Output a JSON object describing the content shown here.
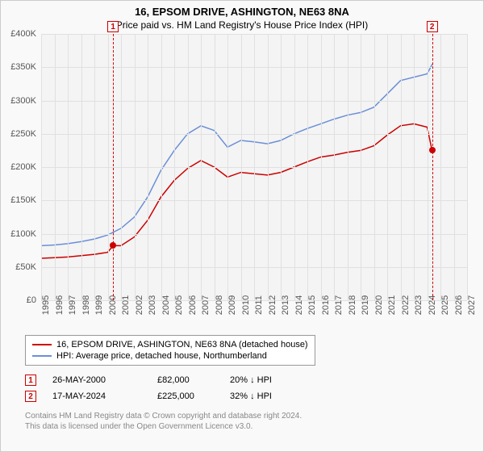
{
  "title": "16, EPSOM DRIVE, ASHINGTON, NE63 8NA",
  "subtitle": "Price paid vs. HM Land Registry's House Price Index (HPI)",
  "chart": {
    "type": "line",
    "background_color": "#f4f4f4",
    "grid_color": "#e0e0e0",
    "axis_label_color": "#555555",
    "axis_fontsize": 11,
    "y": {
      "min": 0,
      "max": 400000,
      "tick_step": 50000,
      "ticks": [
        "£0",
        "£50K",
        "£100K",
        "£150K",
        "£200K",
        "£250K",
        "£300K",
        "£350K",
        "£400K"
      ]
    },
    "x": {
      "min": 1995,
      "max": 2027,
      "tick_step": 1,
      "ticks": [
        "1995",
        "1996",
        "1997",
        "1998",
        "1999",
        "2000",
        "2001",
        "2002",
        "2003",
        "2004",
        "2005",
        "2006",
        "2007",
        "2008",
        "2009",
        "2010",
        "2011",
        "2012",
        "2013",
        "2014",
        "2015",
        "2016",
        "2017",
        "2018",
        "2019",
        "2020",
        "2021",
        "2022",
        "2023",
        "2024",
        "2025",
        "2026",
        "2027"
      ]
    },
    "series": [
      {
        "id": "property",
        "label": "16, EPSOM DRIVE, ASHINGTON, NE63 8NA (detached house)",
        "color": "#cc0000",
        "line_width": 1.5,
        "data": [
          [
            1995,
            63000
          ],
          [
            1996,
            64000
          ],
          [
            1997,
            65000
          ],
          [
            1998,
            67000
          ],
          [
            1999,
            69000
          ],
          [
            2000,
            72000
          ],
          [
            2000.4,
            82000
          ],
          [
            2001,
            82000
          ],
          [
            2002,
            95000
          ],
          [
            2003,
            120000
          ],
          [
            2004,
            155000
          ],
          [
            2005,
            180000
          ],
          [
            2006,
            198000
          ],
          [
            2007,
            210000
          ],
          [
            2008,
            200000
          ],
          [
            2009,
            185000
          ],
          [
            2010,
            192000
          ],
          [
            2011,
            190000
          ],
          [
            2012,
            188000
          ],
          [
            2013,
            192000
          ],
          [
            2014,
            200000
          ],
          [
            2015,
            208000
          ],
          [
            2016,
            215000
          ],
          [
            2017,
            218000
          ],
          [
            2018,
            222000
          ],
          [
            2019,
            225000
          ],
          [
            2020,
            232000
          ],
          [
            2021,
            248000
          ],
          [
            2022,
            262000
          ],
          [
            2023,
            265000
          ],
          [
            2024,
            260000
          ],
          [
            2024.37,
            225000
          ]
        ]
      },
      {
        "id": "hpi",
        "label": "HPI: Average price, detached house, Northumberland",
        "color": "#6a8fd8",
        "line_width": 1.5,
        "data": [
          [
            1995,
            82000
          ],
          [
            1996,
            83000
          ],
          [
            1997,
            85000
          ],
          [
            1998,
            88000
          ],
          [
            1999,
            92000
          ],
          [
            2000,
            98000
          ],
          [
            2001,
            108000
          ],
          [
            2002,
            125000
          ],
          [
            2003,
            155000
          ],
          [
            2004,
            195000
          ],
          [
            2005,
            225000
          ],
          [
            2006,
            250000
          ],
          [
            2007,
            262000
          ],
          [
            2008,
            255000
          ],
          [
            2009,
            230000
          ],
          [
            2010,
            240000
          ],
          [
            2011,
            238000
          ],
          [
            2012,
            235000
          ],
          [
            2013,
            240000
          ],
          [
            2014,
            250000
          ],
          [
            2015,
            258000
          ],
          [
            2016,
            265000
          ],
          [
            2017,
            272000
          ],
          [
            2018,
            278000
          ],
          [
            2019,
            282000
          ],
          [
            2020,
            290000
          ],
          [
            2021,
            310000
          ],
          [
            2022,
            330000
          ],
          [
            2023,
            335000
          ],
          [
            2024,
            340000
          ],
          [
            2024.4,
            355000
          ]
        ]
      }
    ],
    "markers": [
      {
        "num": "1",
        "x": 2000.4,
        "y": 82000,
        "color": "#cc0000"
      },
      {
        "num": "2",
        "x": 2024.37,
        "y": 225000,
        "color": "#cc0000"
      }
    ]
  },
  "legend": {
    "border_color": "#999999",
    "items": [
      {
        "color": "#cc0000",
        "label": "16, EPSOM DRIVE, ASHINGTON, NE63 8NA (detached house)"
      },
      {
        "color": "#6a8fd8",
        "label": "HPI: Average price, detached house, Northumberland"
      }
    ]
  },
  "sales": [
    {
      "num": "1",
      "color": "#cc0000",
      "date": "26-MAY-2000",
      "price": "£82,000",
      "diff": "20% ↓ HPI"
    },
    {
      "num": "2",
      "color": "#cc0000",
      "date": "17-MAY-2024",
      "price": "£225,000",
      "diff": "32% ↓ HPI"
    }
  ],
  "attribution": {
    "line1": "Contains HM Land Registry data © Crown copyright and database right 2024.",
    "line2": "This data is licensed under the Open Government Licence v3.0."
  }
}
